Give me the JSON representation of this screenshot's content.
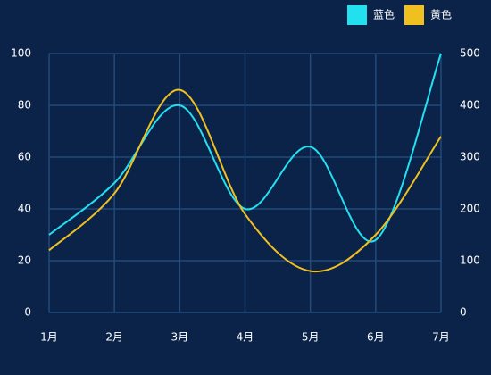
{
  "chart_data": {
    "type": "line",
    "smooth": true,
    "categories": [
      "1月",
      "2月",
      "3月",
      "4月",
      "5月",
      "6月",
      "7月"
    ],
    "series": [
      {
        "name": "蓝色",
        "color": "#22e0f0",
        "values": [
          30,
          50,
          80,
          40,
          64,
          28,
          100
        ]
      },
      {
        "name": "黄色",
        "color": "#f0c020",
        "axis": "y2",
        "values": [
          120,
          230,
          430,
          190,
          80,
          150,
          340
        ]
      }
    ],
    "ylim": [
      0,
      100
    ],
    "yticks": [
      0,
      20,
      40,
      60,
      80,
      100
    ],
    "y2lim": [
      0,
      500
    ],
    "y2ticks": [
      0,
      100,
      200,
      300,
      400,
      500
    ],
    "grid": true,
    "legend": "top-right"
  }
}
